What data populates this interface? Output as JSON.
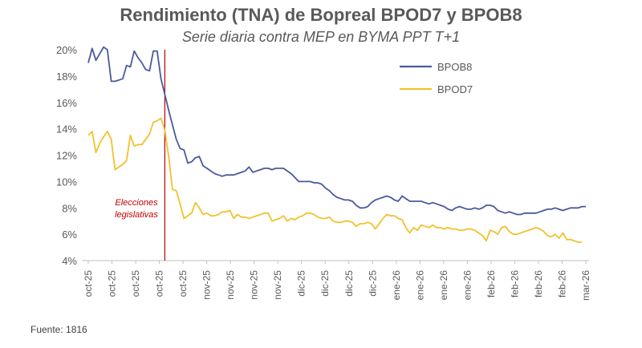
{
  "chart_data": {
    "type": "line",
    "title": "Rendimiento (TNA) de Bopreal BPOD7 y BPOB8",
    "subtitle": "Serie diaria contra MEP en BYMA PPT T+1",
    "xlabel": "",
    "ylabel": "",
    "ylim": [
      4,
      20
    ],
    "yticks": [
      "4%",
      "6%",
      "8%",
      "10%",
      "12%",
      "14%",
      "16%",
      "18%",
      "20%"
    ],
    "xtick_labels": [
      "oct-25",
      "oct-25",
      "oct-25",
      "oct-25",
      "oct-25",
      "nov-25",
      "nov-25",
      "nov-25",
      "nov-25",
      "dic-25",
      "dic-25",
      "dic-25",
      "dic-25",
      "ene-26",
      "ene-26",
      "ene-26",
      "ene-26",
      "feb-26",
      "feb-26",
      "feb-26",
      "feb-26",
      "mar-26"
    ],
    "legend_position": "top-right",
    "grid": false,
    "series": [
      {
        "name": "BPOB8",
        "color": "#4a5a9b",
        "values": [
          19.0,
          20.1,
          19.2,
          19.7,
          20.2,
          20.0,
          17.6,
          17.6,
          17.7,
          17.8,
          18.8,
          18.7,
          19.9,
          19.4,
          19.0,
          18.5,
          18.4,
          19.9,
          19.9,
          17.8,
          16.6,
          15.4,
          14.3,
          13.2,
          12.5,
          12.4,
          11.4,
          11.5,
          11.8,
          11.9,
          11.2,
          11.0,
          10.8,
          10.6,
          10.5,
          10.4,
          10.5,
          10.5,
          10.5,
          10.6,
          10.7,
          10.8,
          11.1,
          10.7,
          10.8,
          10.9,
          11.0,
          11.0,
          10.9,
          11.0,
          11.0,
          11.0,
          10.8,
          10.6,
          10.3,
          10.0,
          10.0,
          10.0,
          10.0,
          9.9,
          9.9,
          9.8,
          9.5,
          9.3,
          9.0,
          8.8,
          8.7,
          8.6,
          8.6,
          8.5,
          8.2,
          8.0,
          8.0,
          8.1,
          8.4,
          8.6,
          8.7,
          8.8,
          8.9,
          8.8,
          8.6,
          8.5,
          8.9,
          8.7,
          8.5,
          8.5,
          8.5,
          8.5,
          8.4,
          8.3,
          8.4,
          8.3,
          8.2,
          8.1,
          7.9,
          7.8,
          8.0,
          8.1,
          8.0,
          7.9,
          7.9,
          8.0,
          7.9,
          8.0,
          8.2,
          8.2,
          8.1,
          7.8,
          7.7,
          7.6,
          7.7,
          7.6,
          7.5,
          7.5,
          7.6,
          7.6,
          7.6,
          7.6,
          7.7,
          7.8,
          7.9,
          7.9,
          8.0,
          7.9,
          7.8,
          7.9,
          8.0,
          8.0,
          8.0,
          8.1,
          8.1
        ]
      },
      {
        "name": "BPOD7",
        "color": "#f2c12e",
        "values": [
          13.5,
          13.8,
          12.2,
          12.9,
          13.4,
          13.8,
          13.2,
          10.9,
          11.1,
          11.3,
          11.6,
          13.5,
          12.7,
          12.8,
          12.8,
          13.2,
          13.6,
          14.5,
          14.6,
          14.8,
          13.9,
          11.9,
          9.4,
          9.3,
          8.3,
          7.2,
          7.4,
          7.6,
          8.4,
          8.0,
          7.5,
          7.6,
          7.4,
          7.4,
          7.5,
          7.7,
          7.7,
          7.8,
          7.2,
          7.5,
          7.3,
          7.3,
          7.2,
          7.3,
          7.4,
          7.5,
          7.6,
          7.6,
          7.0,
          7.1,
          7.2,
          7.4,
          7.0,
          7.2,
          7.1,
          7.3,
          7.4,
          7.6,
          7.6,
          7.5,
          7.3,
          7.2,
          7.2,
          7.3,
          7.0,
          6.9,
          6.9,
          7.0,
          7.0,
          6.9,
          6.6,
          6.8,
          6.8,
          6.9,
          6.8,
          6.4,
          6.8,
          7.2,
          7.5,
          7.4,
          7.4,
          7.2,
          7.1,
          6.5,
          6.1,
          6.5,
          6.3,
          6.7,
          6.6,
          6.5,
          6.7,
          6.5,
          6.5,
          6.4,
          6.5,
          6.4,
          6.4,
          6.3,
          6.3,
          6.4,
          6.4,
          6.3,
          6.1,
          5.9,
          5.5,
          6.3,
          6.2,
          6.0,
          6.5,
          6.6,
          6.2,
          6.0,
          6.0,
          6.1,
          6.2,
          6.3,
          6.4,
          6.5,
          6.4,
          6.2,
          5.9,
          5.8,
          6.0,
          5.7,
          6.1,
          5.6,
          5.6,
          5.5,
          5.4,
          5.4
        ]
      }
    ],
    "event_index": 20,
    "annotation": [
      "Elecciones",
      "legislativas"
    ],
    "source": "Fuente: 1816"
  }
}
